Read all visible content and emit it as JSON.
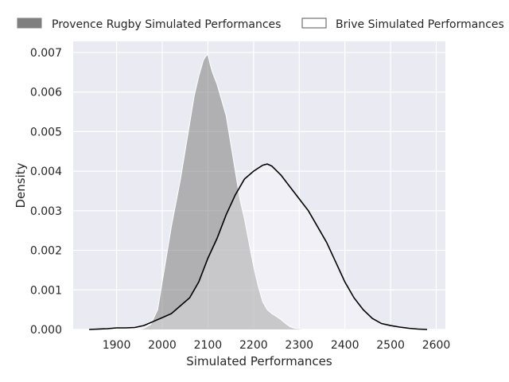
{
  "chart_data": {
    "type": "area",
    "title": "",
    "xlabel": "Simulated Performances",
    "ylabel": "Density",
    "xlim": [
      1805,
      2620
    ],
    "ylim": [
      0,
      0.00728
    ],
    "x_ticks": [
      1900,
      2000,
      2100,
      2200,
      2300,
      2400,
      2500,
      2600
    ],
    "y_ticks": [
      0,
      0.001,
      0.002,
      0.003,
      0.004,
      0.005,
      0.006,
      0.007
    ],
    "y_tick_labels": [
      "0.000",
      "0.001",
      "0.002",
      "0.003",
      "0.004",
      "0.005",
      "0.006",
      "0.007"
    ],
    "grid": true,
    "legend_position": "top",
    "colors": {
      "background": "#eaeaf2",
      "grid": "#ffffff",
      "provence_fill": "#7f7f7f",
      "brive_line": "#000000"
    },
    "series": [
      {
        "name": "Provence Rugby Simulated Performances",
        "style": "filled",
        "x": [
          1945,
          1960,
          1975,
          1990,
          2000,
          2010,
          2020,
          2030,
          2040,
          2050,
          2060,
          2070,
          2080,
          2090,
          2095,
          2100,
          2105,
          2110,
          2120,
          2130,
          2140,
          2150,
          2160,
          2170,
          2180,
          2190,
          2200,
          2210,
          2220,
          2230,
          2240,
          2250,
          2260,
          2270,
          2280,
          2290,
          2300,
          2310,
          2320,
          2330,
          2340,
          2350
        ],
        "y": [
          0.0,
          3e-05,
          0.00013,
          0.0005,
          0.0012,
          0.0019,
          0.0026,
          0.0032,
          0.0038,
          0.0045,
          0.0052,
          0.0059,
          0.0064,
          0.0068,
          0.0069,
          0.00695,
          0.0067,
          0.0065,
          0.0062,
          0.0058,
          0.0054,
          0.0047,
          0.004,
          0.0033,
          0.0028,
          0.0022,
          0.0016,
          0.0011,
          0.0007,
          0.0005,
          0.0004,
          0.00033,
          0.00025,
          0.00015,
          7e-05,
          3e-05,
          2e-05,
          1e-05,
          5e-06,
          3e-06,
          1e-06,
          0.0
        ]
      },
      {
        "name": "Brive Simulated Performances",
        "style": "line",
        "x": [
          1840,
          1880,
          1900,
          1920,
          1940,
          1960,
          1980,
          2000,
          2020,
          2040,
          2060,
          2080,
          2100,
          2120,
          2140,
          2160,
          2180,
          2200,
          2220,
          2230,
          2240,
          2260,
          2280,
          2300,
          2320,
          2340,
          2360,
          2380,
          2400,
          2420,
          2440,
          2460,
          2480,
          2500,
          2520,
          2540,
          2560,
          2580
        ],
        "y": [
          0.0,
          2e-05,
          4e-05,
          4e-05,
          5e-05,
          0.0001,
          0.0002,
          0.0003,
          0.0004,
          0.0006,
          0.0008,
          0.0012,
          0.0018,
          0.0023,
          0.0029,
          0.0034,
          0.0038,
          0.004,
          0.00415,
          0.00418,
          0.00413,
          0.0039,
          0.0036,
          0.0033,
          0.003,
          0.0026,
          0.0022,
          0.0017,
          0.0012,
          0.0008,
          0.0005,
          0.00028,
          0.00015,
          0.0001,
          6e-05,
          3e-05,
          1e-05,
          0.0
        ]
      }
    ]
  }
}
